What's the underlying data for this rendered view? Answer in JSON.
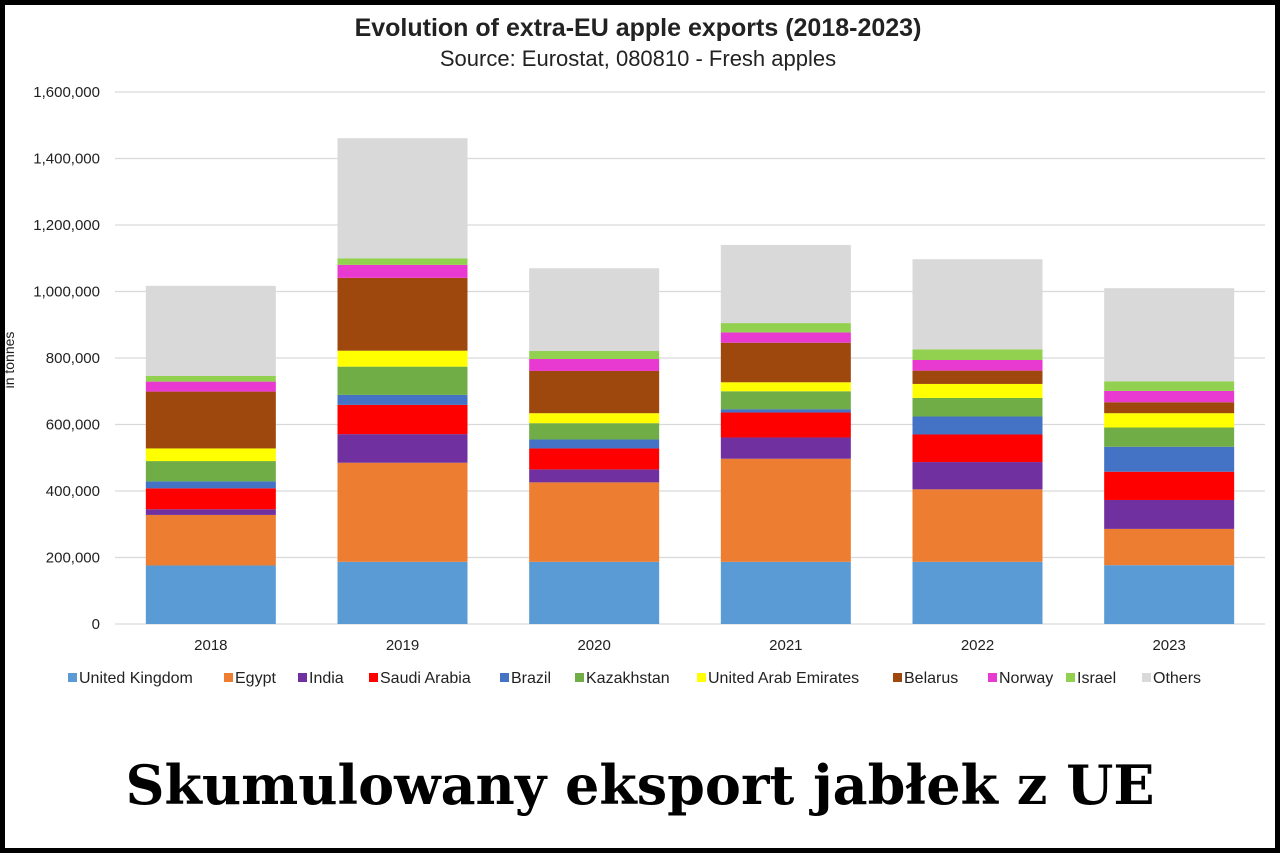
{
  "chart_data": {
    "type": "bar",
    "stacked": true,
    "title": "Evolution of extra-EU apple exports (2018-2023)",
    "subtitle": "Source: Eurostat, 080810 - Fresh apples",
    "xlabel": "",
    "ylabel": "in tonnes",
    "ylim": [
      0,
      1600000
    ],
    "yticks": [
      "0",
      "200,000",
      "400,000",
      "600,000",
      "800,000",
      "1,000,000",
      "1,200,000",
      "1,400,000",
      "1,600,000"
    ],
    "grid": true,
    "legend_position": "bottom",
    "categories": [
      "2018",
      "2019",
      "2020",
      "2021",
      "2022",
      "2023"
    ],
    "series": [
      {
        "name": "United Kingdom",
        "color": "#5b9bd5",
        "values": [
          176000,
          187000,
          187000,
          187000,
          187000,
          177000
        ]
      },
      {
        "name": "Egypt",
        "color": "#ed7d31",
        "values": [
          152000,
          298000,
          239000,
          310000,
          218000,
          109000
        ]
      },
      {
        "name": "India",
        "color": "#7030a0",
        "values": [
          17000,
          86000,
          39000,
          64000,
          82000,
          87000
        ]
      },
      {
        "name": "Saudi Arabia",
        "color": "#ff0000",
        "values": [
          63000,
          88000,
          63000,
          75000,
          83000,
          85000
        ]
      },
      {
        "name": "Brazil",
        "color": "#4472c4",
        "values": [
          21000,
          30000,
          27000,
          10000,
          54000,
          75000
        ]
      },
      {
        "name": "Kazakhstan",
        "color": "#70ad47",
        "values": [
          61000,
          85000,
          49000,
          54000,
          56000,
          58000
        ]
      },
      {
        "name": "United Arab Emirates",
        "color": "#ffff00",
        "values": [
          38000,
          48000,
          30000,
          27000,
          42000,
          43000
        ]
      },
      {
        "name": "Belarus",
        "color": "#9e480e",
        "values": [
          171000,
          219000,
          127000,
          119000,
          40000,
          33000
        ]
      },
      {
        "name": "Norway",
        "color": "#e83ad0",
        "values": [
          30000,
          39000,
          36000,
          31000,
          32000,
          34000
        ]
      },
      {
        "name": "Israel",
        "color": "#92d050",
        "values": [
          17000,
          20000,
          24000,
          28000,
          32000,
          29000
        ]
      },
      {
        "name": "Others",
        "color": "#d9d9d9",
        "values": [
          271000,
          361000,
          249000,
          235000,
          271000,
          280000
        ]
      }
    ]
  },
  "caption": "Skumulowany eksport jabłek z UE"
}
